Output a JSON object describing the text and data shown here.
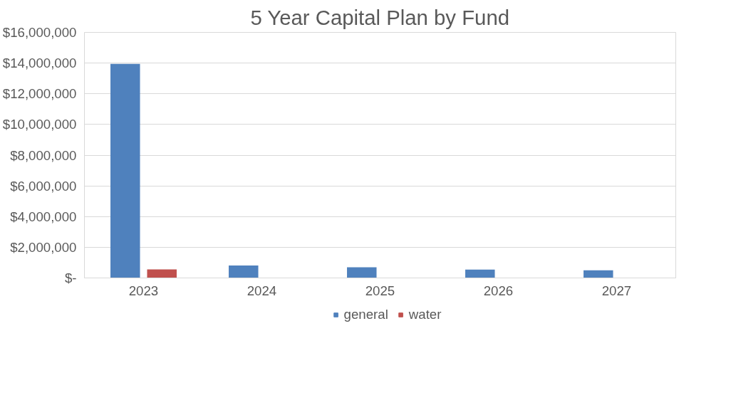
{
  "chart_data": {
    "type": "bar",
    "title": "5 Year Capital Plan by Fund",
    "categories": [
      "2023",
      "2024",
      "2025",
      "2026",
      "2027"
    ],
    "series": [
      {
        "name": "general",
        "color": "#4f81bd",
        "values": [
          13950000,
          810000,
          700000,
          550000,
          500000
        ]
      },
      {
        "name": "water",
        "color": "#c0504d",
        "values": [
          560000,
          null,
          null,
          null,
          null
        ]
      }
    ],
    "ylim": [
      0,
      16000000
    ],
    "yticks": [
      {
        "value": 0,
        "label": "$-"
      },
      {
        "value": 2000000,
        "label": "$2,000,000"
      },
      {
        "value": 4000000,
        "label": "$4,000,000"
      },
      {
        "value": 6000000,
        "label": "$6,000,000"
      },
      {
        "value": 8000000,
        "label": "$8,000,000"
      },
      {
        "value": 10000000,
        "label": "$10,000,000"
      },
      {
        "value": 12000000,
        "label": "$12,000,000"
      },
      {
        "value": 14000000,
        "label": "$14,000,000"
      },
      {
        "value": 16000000,
        "label": "$16,000,000"
      }
    ],
    "grid": "y",
    "legend": "bottom"
  }
}
